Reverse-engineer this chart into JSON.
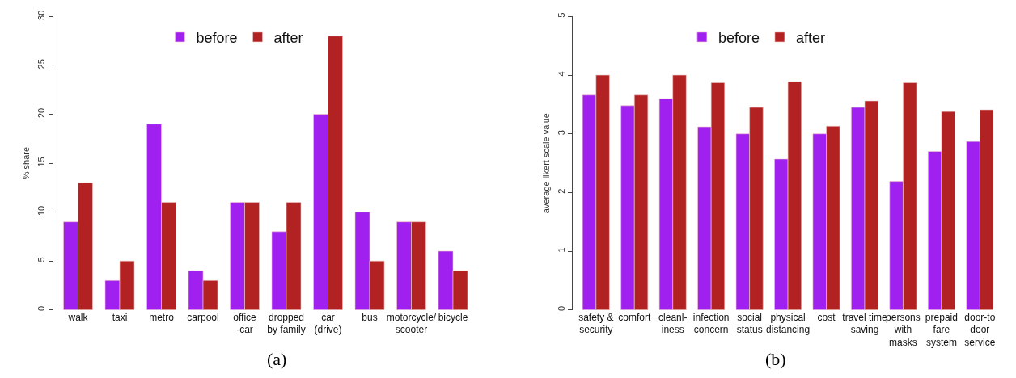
{
  "chart_data": [
    {
      "type": "bar",
      "ylabel": "% share",
      "categories": [
        "walk",
        "taxi",
        "metro",
        "carpool",
        "office\n-car",
        "dropped\nby family",
        "car\n(drive)",
        "bus",
        "motorcycle/\nscooter",
        "bicycle"
      ],
      "series": [
        {
          "name": "before",
          "color": "#a020f0",
          "values": [
            9,
            3,
            19,
            4,
            11,
            8,
            20,
            10,
            9,
            6
          ]
        },
        {
          "name": "after",
          "color": "#b22222",
          "values": [
            13,
            5,
            11,
            3,
            11,
            11,
            28,
            5,
            9,
            4
          ]
        }
      ],
      "ylim": [
        0,
        30
      ],
      "yticks": [
        0,
        5,
        10,
        15,
        20,
        25,
        30
      ],
      "legend": "top",
      "annotations": [
        "(a)"
      ]
    },
    {
      "type": "bar",
      "ylabel": "average likert scale value",
      "categories": [
        "safety &\nsecurity",
        "comfort",
        "cleanl-\niness",
        "infection\nconcern",
        "social\nstatus",
        "physical\ndistancing",
        "cost",
        "travel time\nsaving",
        "persons\nwith\nmasks",
        "prepaid\nfare\nsystem",
        "door-to\ndoor\nservice"
      ],
      "series": [
        {
          "name": "before",
          "color": "#a020f0",
          "values": [
            3.66,
            3.48,
            3.6,
            3.12,
            3.0,
            2.57,
            3.0,
            3.45,
            2.19,
            2.7,
            2.87
          ]
        },
        {
          "name": "after",
          "color": "#b22222",
          "values": [
            4.0,
            3.66,
            4.0,
            3.87,
            3.45,
            3.89,
            3.13,
            3.56,
            3.87,
            3.38,
            3.41
          ]
        }
      ],
      "ylim": [
        0,
        5
      ],
      "yticks": [
        0,
        1,
        2,
        3,
        4,
        5
      ],
      "legend": "top",
      "annotations": [
        "(b)"
      ]
    }
  ]
}
